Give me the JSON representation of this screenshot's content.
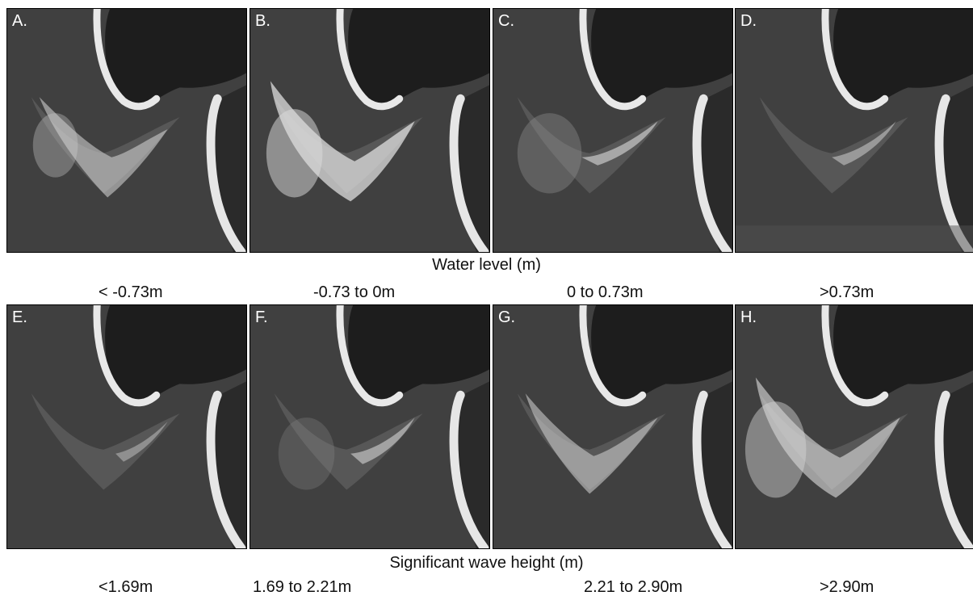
{
  "panels": [
    {
      "label": "A."
    },
    {
      "label": "B."
    },
    {
      "label": "C."
    },
    {
      "label": "D."
    },
    {
      "label": "E."
    },
    {
      "label": "F."
    },
    {
      "label": "G."
    },
    {
      "label": "H."
    }
  ],
  "water_level": {
    "title": "Water level (m)",
    "bins": [
      "< -0.73m",
      "-0.73 to 0m",
      "0 to 0.73m",
      ">0.73m"
    ]
  },
  "wave_height": {
    "title": "Significant wave height (m)",
    "bins": [
      "<1.69m",
      "1.69 to 2.21m",
      "2.21 to 2.90m",
      ">2.90m"
    ]
  }
}
